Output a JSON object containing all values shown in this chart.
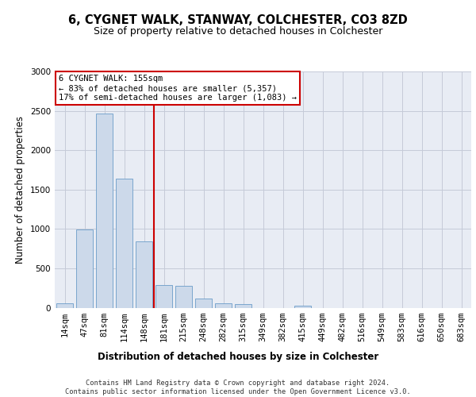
{
  "title1": "6, CYGNET WALK, STANWAY, COLCHESTER, CO3 8ZD",
  "title2": "Size of property relative to detached houses in Colchester",
  "xlabel": "Distribution of detached houses by size in Colchester",
  "ylabel": "Number of detached properties",
  "categories": [
    "14sqm",
    "47sqm",
    "81sqm",
    "114sqm",
    "148sqm",
    "181sqm",
    "215sqm",
    "248sqm",
    "282sqm",
    "315sqm",
    "349sqm",
    "382sqm",
    "415sqm",
    "449sqm",
    "482sqm",
    "516sqm",
    "549sqm",
    "583sqm",
    "616sqm",
    "650sqm",
    "683sqm"
  ],
  "values": [
    60,
    990,
    2470,
    1640,
    840,
    290,
    280,
    120,
    55,
    50,
    0,
    0,
    30,
    0,
    0,
    0,
    0,
    0,
    0,
    0,
    0
  ],
  "bar_color": "#ccd9ea",
  "bar_edge_color": "#6b9cc8",
  "grid_color": "#c5cad8",
  "bg_color": "#e8ecf4",
  "vline_x": 4.5,
  "vline_color": "#cc0000",
  "ann_line1": "6 CYGNET WALK: 155sqm",
  "ann_line2": "← 83% of detached houses are smaller (5,357)",
  "ann_line3": "17% of semi-detached houses are larger (1,083) →",
  "ylim": [
    0,
    3000
  ],
  "yticks": [
    0,
    500,
    1000,
    1500,
    2000,
    2500,
    3000
  ],
  "footer_line1": "Contains HM Land Registry data © Crown copyright and database right 2024.",
  "footer_line2": "Contains public sector information licensed under the Open Government Licence v3.0."
}
